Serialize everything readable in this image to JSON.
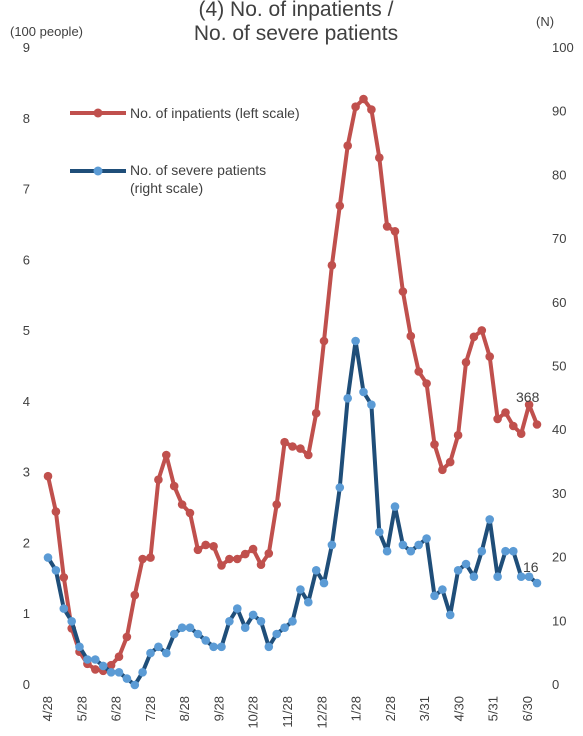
{
  "chart_data": {
    "type": "line",
    "title": "(4) No. of inpatients / No. of severe patients",
    "title_lines": [
      "(4) No. of inpatients /",
      "No. of severe patients"
    ],
    "y_left_unit": "(100 people)",
    "y_right_unit": "(N)",
    "y_left_ticks": [
      "0",
      "1",
      "2",
      "3",
      "4",
      "5",
      "6",
      "7",
      "8",
      "9"
    ],
    "y_right_ticks": [
      "0",
      "10",
      "20",
      "30",
      "40",
      "50",
      "60",
      "70",
      "80",
      "90",
      "100"
    ],
    "ylim_left": [
      0,
      9
    ],
    "ylim_right": [
      0,
      100
    ],
    "x_tick_labels": [
      "4/28",
      "5/28",
      "6/28",
      "7/28",
      "8/28",
      "9/28",
      "10/28",
      "11/28",
      "12/28",
      "1/28",
      "2/28",
      "3/31",
      "4/30",
      "5/31",
      "6/30"
    ],
    "legend_position": "top-left",
    "colors": {
      "inpatients": "#C0504D",
      "severe": "#1F4E79",
      "severe_marker": "#5B9BD5"
    },
    "series": [
      {
        "name": "No. of inpatients (left scale)",
        "axis": "left",
        "values": [
          2.95,
          2.45,
          1.52,
          0.8,
          0.47,
          0.3,
          0.22,
          0.2,
          0.28,
          0.4,
          0.68,
          1.27,
          1.78,
          1.8,
          2.9,
          3.25,
          2.81,
          2.55,
          2.43,
          1.91,
          1.98,
          1.96,
          1.69,
          1.78,
          1.78,
          1.85,
          1.92,
          1.7,
          1.86,
          2.55,
          3.43,
          3.37,
          3.34,
          3.25,
          3.84,
          4.86,
          5.93,
          6.77,
          7.62,
          8.17,
          8.28,
          8.13,
          7.45,
          6.48,
          6.41,
          5.56,
          4.93,
          4.43,
          4.26,
          3.4,
          3.04,
          3.15,
          3.53,
          4.56,
          4.92,
          5.01,
          4.64,
          3.76,
          3.85,
          3.66,
          3.55,
          3.96,
          3.68
        ]
      },
      {
        "name": "No. of severe patients (right scale)",
        "axis": "right",
        "values": [
          20.0,
          18.0,
          12.0,
          10.0,
          6.0,
          4.0,
          4.0,
          3.0,
          2.0,
          2.0,
          1.0,
          0,
          2.0,
          5.0,
          6.0,
          5.0,
          8.0,
          9.0,
          9.0,
          8.0,
          7.0,
          6.0,
          6.0,
          10.0,
          12.0,
          9.0,
          11.0,
          10.0,
          6.0,
          8.0,
          9.0,
          10.0,
          15.0,
          13.0,
          18.0,
          16.0,
          22.0,
          31.0,
          45.0,
          54.0,
          46.0,
          44.0,
          24.0,
          21.0,
          28.0,
          22.0,
          21.0,
          22.0,
          23.0,
          14.0,
          15.0,
          11.0,
          18.0,
          19.0,
          17.0,
          21.0,
          26.0,
          17.0,
          21.0,
          21.0,
          17.0,
          17.0,
          16.0
        ]
      }
    ],
    "annotations": [
      {
        "text": "368",
        "series": 0,
        "point": "last"
      },
      {
        "text": "16",
        "series": 1,
        "point": "last"
      }
    ]
  }
}
